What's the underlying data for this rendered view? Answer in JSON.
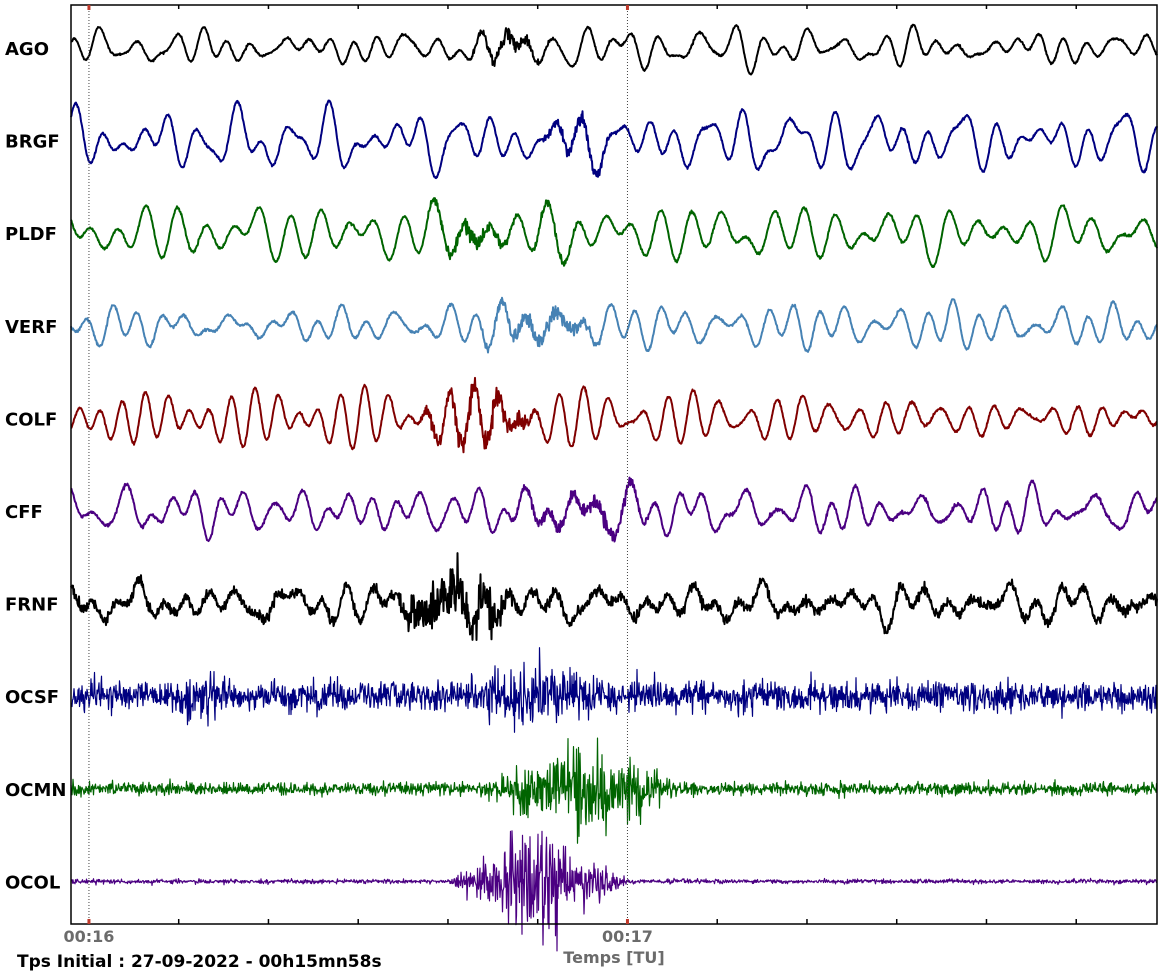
{
  "chart_data": {
    "type": "line",
    "title": "",
    "xlabel": "Temps [TU]",
    "ylabel": "",
    "x_range_seconds": [
      0,
      121
    ],
    "x_start_time": "00:15:58",
    "x_ticks": [
      {
        "seconds": 2,
        "label": "00:16",
        "marker": true
      },
      {
        "seconds": 12,
        "label": ""
      },
      {
        "seconds": 22,
        "label": ""
      },
      {
        "seconds": 32,
        "label": ""
      },
      {
        "seconds": 42,
        "label": ""
      },
      {
        "seconds": 52,
        "label": ""
      },
      {
        "seconds": 62,
        "label": "00:17",
        "marker": true
      },
      {
        "seconds": 72,
        "label": ""
      },
      {
        "seconds": 82,
        "label": ""
      },
      {
        "seconds": 92,
        "label": ""
      },
      {
        "seconds": 102,
        "label": ""
      },
      {
        "seconds": 112,
        "label": ""
      }
    ],
    "footer": "Tps Initial : 27-09-2022 - 00h15mn58s",
    "grid": false,
    "series": [
      {
        "name": "AGO",
        "color": "#000000"
      },
      {
        "name": "BRGF",
        "color": "#000080"
      },
      {
        "name": "PLDF",
        "color": "#006400"
      },
      {
        "name": "VERF",
        "color": "#4682B4"
      },
      {
        "name": "COLF",
        "color": "#800000"
      },
      {
        "name": "CFF",
        "color": "#4B0082"
      },
      {
        "name": "FRNF",
        "color": "#000000"
      },
      {
        "name": "OCSF",
        "color": "#000080"
      },
      {
        "name": "OCMN",
        "color": "#006400"
      },
      {
        "name": "OCOL",
        "color": "#4B0082"
      }
    ]
  }
}
